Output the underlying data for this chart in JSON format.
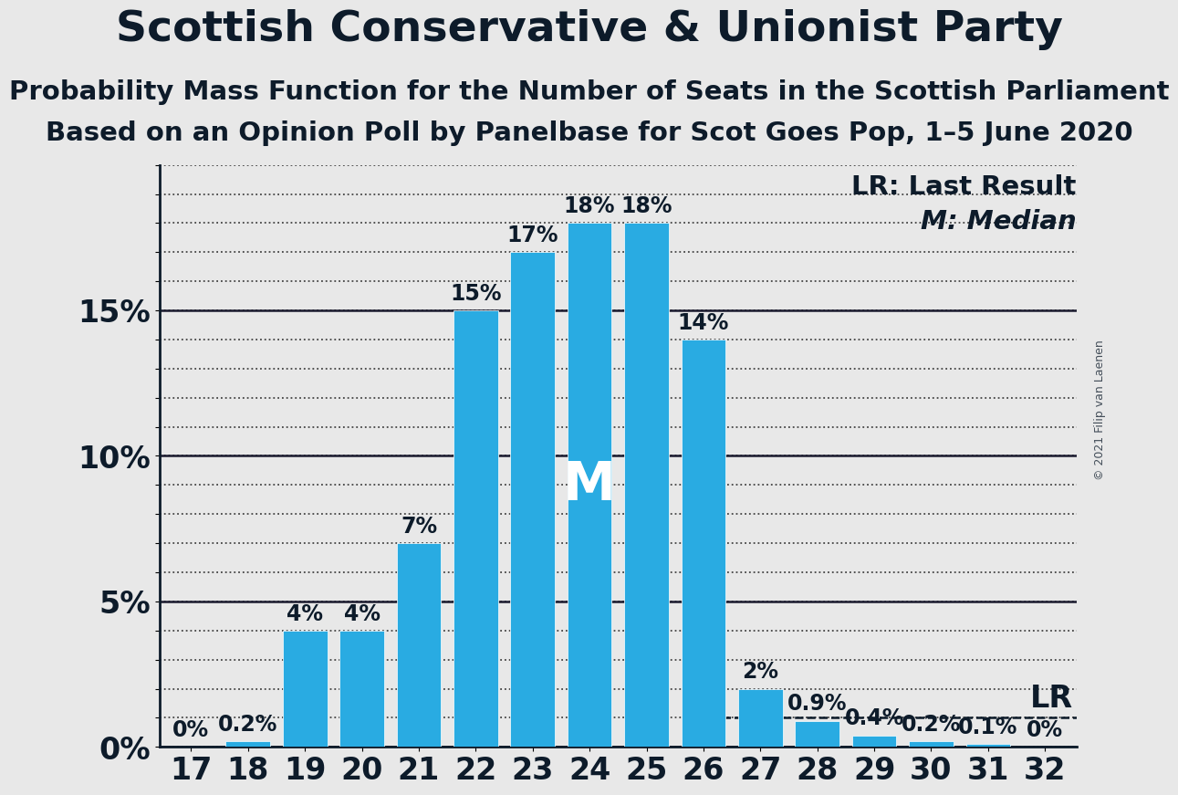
{
  "title": "Scottish Conservative & Unionist Party",
  "subtitle1": "Probability Mass Function for the Number of Seats in the Scottish Parliament",
  "subtitle2": "Based on an Opinion Poll by Panelbase for Scot Goes Pop, 1–5 June 2020",
  "copyright": "© 2021 Filip van Laenen",
  "categories": [
    17,
    18,
    19,
    20,
    21,
    22,
    23,
    24,
    25,
    26,
    27,
    28,
    29,
    30,
    31,
    32
  ],
  "values": [
    0.0,
    0.2,
    4.0,
    4.0,
    7.0,
    15.0,
    17.0,
    18.0,
    18.0,
    14.0,
    2.0,
    0.9,
    0.4,
    0.2,
    0.1,
    0.0
  ],
  "labels": [
    "0%",
    "0.2%",
    "4%",
    "4%",
    "7%",
    "15%",
    "17%",
    "18%",
    "18%",
    "14%",
    "2%",
    "0.9%",
    "0.4%",
    "0.2%",
    "0.1%",
    "0%"
  ],
  "bar_color": "#29ABE2",
  "background_color": "#E8E8E8",
  "median_seat": 24,
  "lr_value": 1.0,
  "lr_label": "LR",
  "legend_lr": "LR: Last Result",
  "legend_m": "M: Median",
  "ylabel_ticks": [
    0,
    5,
    10,
    15
  ],
  "ylim": [
    0,
    20
  ],
  "title_fontsize": 34,
  "subtitle_fontsize": 21,
  "tick_fontsize": 24,
  "bar_label_fontsize": 17,
  "legend_fontsize": 21,
  "text_color": "#0D1B2A"
}
